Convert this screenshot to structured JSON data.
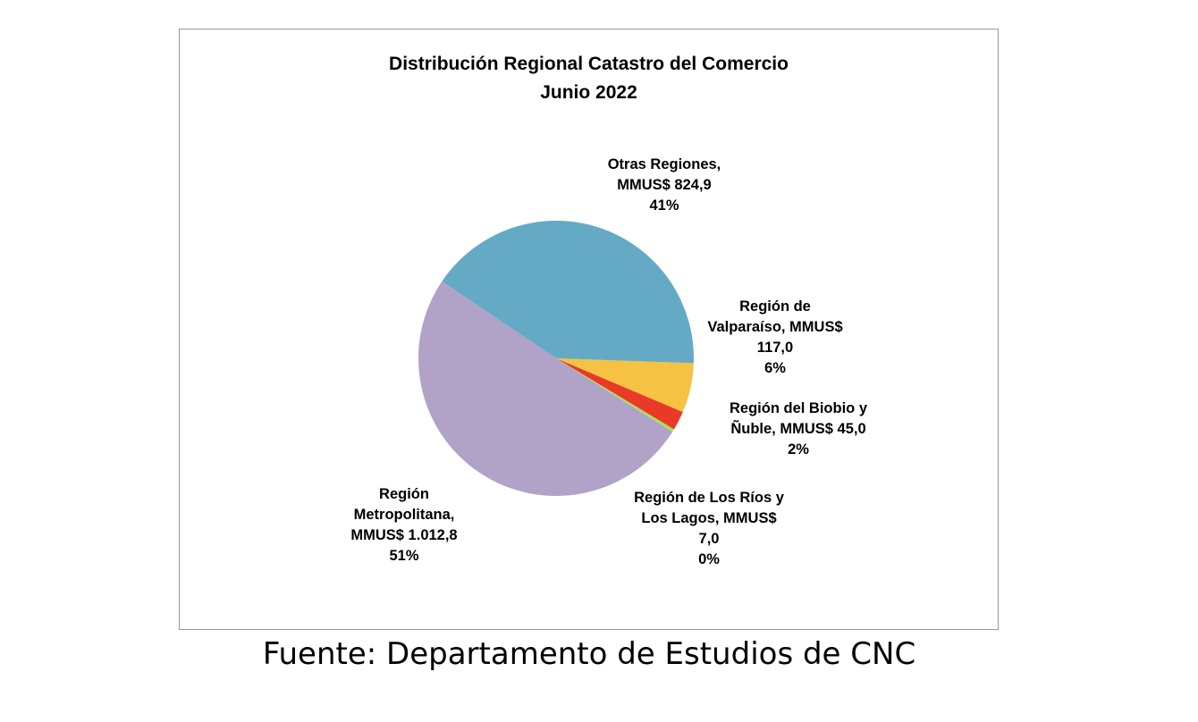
{
  "chart_data": {
    "type": "pie",
    "title": [
      "Distribución Regional Catastro del Comercio",
      "Junio 2022"
    ],
    "unit": "MMUS$",
    "slices": [
      {
        "name": "Región de Valparaíso",
        "value": 117.0,
        "percent": "6%",
        "color": "#F5C243",
        "label_lines": [
          "Región de",
          "Valparaíso, MMUS$",
          "117,0",
          "6%"
        ]
      },
      {
        "name": "Región del Biobio y Ñuble",
        "value": 45.0,
        "percent": "2%",
        "color": "#E83A26",
        "label_lines": [
          "Región del Biobio y",
          "Ñuble, MMUS$ 45,0",
          "2%"
        ]
      },
      {
        "name": "Región de Los Ríos y Los Lagos",
        "value": 7.0,
        "percent": "0%",
        "color": "#A8E05A",
        "label_lines": [
          "Región de Los Ríos y",
          "Los Lagos, MMUS$",
          "7,0",
          "0%"
        ]
      },
      {
        "name": "Región Metropolitana",
        "value": 1012.8,
        "percent": "51%",
        "color": "#B1A2C8",
        "label_lines": [
          "Región",
          "Metropolitana,",
          "MMUS$ 1.012,8",
          "51%"
        ]
      },
      {
        "name": "Otras Regiones",
        "value": 824.9,
        "percent": "41%",
        "color": "#65AAC5",
        "label_lines": [
          "Otras Regiones,",
          "MMUS$ 824,9",
          "41%"
        ]
      }
    ],
    "start_angle_deg": 2,
    "direction": "clockwise",
    "legend": "none"
  },
  "source": "Fuente: Departamento de Estudios de CNC"
}
